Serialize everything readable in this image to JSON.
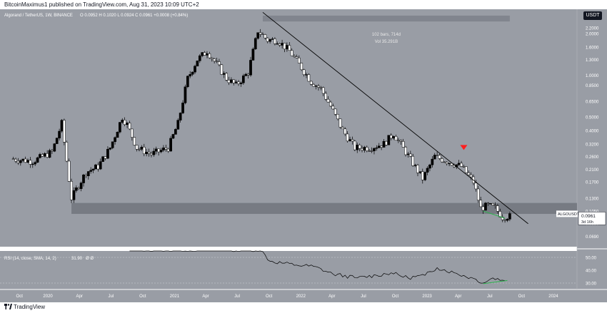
{
  "header": {
    "credit": "BitcoinMaximus1 published on TradingView.com, Aug 31, 2023 10:09 UTC+2",
    "symbol_line": "Algorand / TetherUS, 1W, BINANCE",
    "ohlc": "O 0.0952  H 0.1020  L 0.0924  C 0.0961  +0.0008 (+0.84%)",
    "currency": "USDT"
  },
  "footer": {
    "brand": "TradingView"
  },
  "range_box": {
    "bars": "102 bars, 714d",
    "vol": "Vol 35.291B"
  },
  "price_label": {
    "symbol": "ALGOUSDT",
    "price": "0.0961",
    "countdown": "3d 16h"
  },
  "rsi": {
    "label": "RSI (14, close, SMA, 14, 2)",
    "value": "31.90",
    "extra": "Ø  Ø"
  },
  "colors": {
    "pane_bg": "#999da5",
    "candle": "#000000",
    "down_candle": "#ffffff",
    "trendline": "#000000",
    "support_band": "#6c7078",
    "rsi_line": "#000000",
    "divergence": "#2bb24c",
    "arrow": "#ff1e1e"
  },
  "chart_data": {
    "type": "candlestick",
    "scale": "log",
    "y_ticks": [
      "2.2000",
      "2.0000",
      "1.6000",
      "1.3000",
      "1.0000",
      "0.8500",
      "0.6500",
      "0.5000",
      "0.4000",
      "0.3200",
      "0.2600",
      "0.2100",
      "0.1700",
      "0.1300",
      "0.1050",
      "0.0850",
      "0.0690"
    ],
    "x_ticks": [
      "Oct",
      "2020",
      "Apr",
      "Jul",
      "Oct",
      "2021",
      "Apr",
      "Jul",
      "Oct",
      "2022",
      "Apr",
      "Jul",
      "Oct",
      "2023",
      "Apr",
      "Jul",
      "Oct",
      "2024"
    ],
    "ylim": [
      0.058,
      3.0
    ],
    "trendline": [
      {
        "date": "2021-09-13",
        "price": 2.85
      },
      {
        "date": "2023-10-20",
        "price": 0.085
      }
    ],
    "support_zone": [
      0.1,
      0.12
    ],
    "last_price": 0.0961,
    "price_path": [
      [
        "2019-09-23",
        0.25
      ],
      [
        "2019-11-25",
        0.24
      ],
      [
        "2020-01-20",
        0.28
      ],
      [
        "2020-02-17",
        0.45
      ],
      [
        "2020-03-16",
        0.13
      ],
      [
        "2020-04-27",
        0.2
      ],
      [
        "2020-06-01",
        0.22
      ],
      [
        "2020-07-06",
        0.3
      ],
      [
        "2020-08-10",
        0.5
      ],
      [
        "2020-08-24",
        0.44
      ],
      [
        "2020-09-21",
        0.3
      ],
      [
        "2020-11-02",
        0.27
      ],
      [
        "2020-12-21",
        0.3
      ],
      [
        "2021-01-18",
        0.45
      ],
      [
        "2021-02-15",
        0.95
      ],
      [
        "2021-03-15",
        1.3
      ],
      [
        "2021-04-12",
        1.5
      ],
      [
        "2021-05-10",
        1.2
      ],
      [
        "2021-06-07",
        0.95
      ],
      [
        "2021-07-05",
        0.85
      ],
      [
        "2021-08-09",
        1.05
      ],
      [
        "2021-09-06",
        2.1
      ],
      [
        "2021-10-04",
        1.8
      ],
      [
        "2021-11-01",
        1.8
      ],
      [
        "2021-12-06",
        1.5
      ],
      [
        "2022-01-03",
        1.2
      ],
      [
        "2022-02-07",
        0.9
      ],
      [
        "2022-03-07",
        0.8
      ],
      [
        "2022-04-04",
        0.6
      ],
      [
        "2022-05-09",
        0.4
      ],
      [
        "2022-06-13",
        0.3
      ],
      [
        "2022-07-25",
        0.3
      ],
      [
        "2022-09-05",
        0.32
      ],
      [
        "2022-10-03",
        0.38
      ],
      [
        "2022-11-07",
        0.28
      ],
      [
        "2022-12-26",
        0.18
      ],
      [
        "2023-01-30",
        0.26
      ],
      [
        "2023-03-06",
        0.24
      ],
      [
        "2023-04-17",
        0.22
      ],
      [
        "2023-05-22",
        0.17
      ],
      [
        "2023-06-12",
        0.11
      ],
      [
        "2023-07-03",
        0.115
      ],
      [
        "2023-07-24",
        0.11
      ],
      [
        "2023-08-14",
        0.095
      ],
      [
        "2023-08-28",
        0.096
      ]
    ],
    "range_box": {
      "start": "2021-09-13",
      "end": "2023-08-28",
      "price_low": 2.45,
      "price_high": 2.7
    },
    "down_arrow": {
      "date": "2023-04-17",
      "price": 0.3
    },
    "divergence_price": [
      {
        "date": "2023-06-12",
        "price": 0.105
      },
      {
        "date": "2023-08-14",
        "price": 0.093
      }
    ],
    "rsi_ticks": [
      "50.00",
      "40.00",
      "30.00"
    ],
    "rsi_ylim": [
      25,
      55
    ],
    "rsi_path": [
      [
        "2020-08-24",
        56
      ],
      [
        "2020-09-28",
        56
      ],
      [
        "2021-09-06",
        56
      ],
      [
        "2021-10-04",
        47
      ],
      [
        "2021-12-20",
        44
      ],
      [
        "2022-02-07",
        43
      ],
      [
        "2022-04-04",
        37
      ],
      [
        "2022-06-13",
        34
      ],
      [
        "2022-08-08",
        36
      ],
      [
        "2022-09-19",
        38
      ],
      [
        "2022-11-07",
        34
      ],
      [
        "2022-12-26",
        36
      ],
      [
        "2023-01-30",
        42
      ],
      [
        "2023-03-20",
        38
      ],
      [
        "2023-05-22",
        33
      ],
      [
        "2023-06-12",
        30
      ],
      [
        "2023-07-10",
        34
      ],
      [
        "2023-08-14",
        31.9
      ]
    ],
    "divergence_rsi": [
      {
        "date": "2023-06-12",
        "value": 29.5
      },
      {
        "date": "2023-08-21",
        "value": 32
      }
    ]
  }
}
